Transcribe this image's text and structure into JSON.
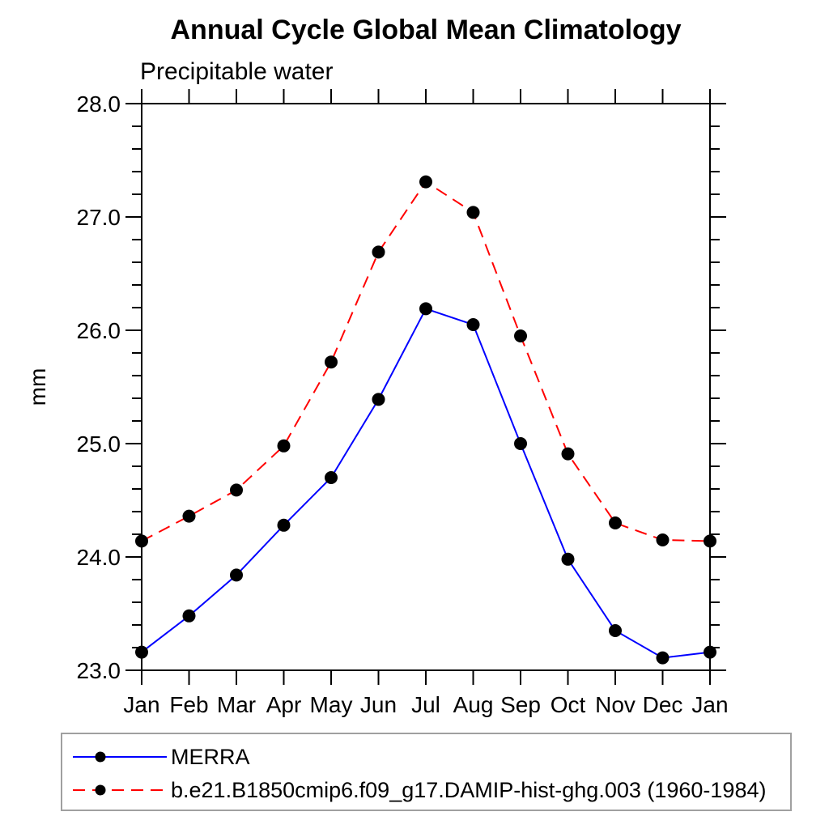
{
  "title": "Annual Cycle Global Mean Climatology",
  "subtitle": "Precipitable water",
  "ylabel": "mm",
  "colors": {
    "axis": "#000000",
    "marker": "#000000",
    "merra_line": "#0000ff",
    "model_line": "#ff0000",
    "legend_border": "#a0a0a0",
    "background": "#ffffff"
  },
  "chart_data": {
    "type": "line",
    "categories": [
      "Jan",
      "Feb",
      "Mar",
      "Apr",
      "May",
      "Jun",
      "Jul",
      "Aug",
      "Sep",
      "Oct",
      "Nov",
      "Dec",
      "Jan"
    ],
    "series": [
      {
        "name": "MERRA",
        "color": "#0000ff",
        "line_style": "solid",
        "marker": "filled-circle",
        "marker_color": "#000000",
        "values": [
          23.16,
          23.48,
          23.84,
          24.28,
          24.7,
          25.39,
          26.19,
          26.05,
          25.0,
          23.98,
          23.35,
          23.11,
          23.16
        ]
      },
      {
        "name": "b.e21.B1850cmip6.f09_g17.DAMIP-hist-ghg.003 (1960-1984)",
        "color": "#ff0000",
        "line_style": "dashed",
        "marker": "filled-circle",
        "marker_color": "#000000",
        "values": [
          24.14,
          24.36,
          24.59,
          24.98,
          25.72,
          26.69,
          27.31,
          27.04,
          25.95,
          24.91,
          24.3,
          24.15,
          24.14
        ]
      }
    ],
    "title": "Annual Cycle Global Mean Climatology",
    "subtitle": "Precipitable water",
    "xlabel": "",
    "ylabel": "mm",
    "ylim": [
      23.0,
      28.0
    ],
    "ytick_step": 1.0,
    "yminor_step": 0.2,
    "ytick_labels": [
      "23.0",
      "24.0",
      "25.0",
      "26.0",
      "27.0",
      "28.0"
    ],
    "grid": false,
    "frame": "box-with-outward-ticks",
    "legend_position": "bottom"
  }
}
